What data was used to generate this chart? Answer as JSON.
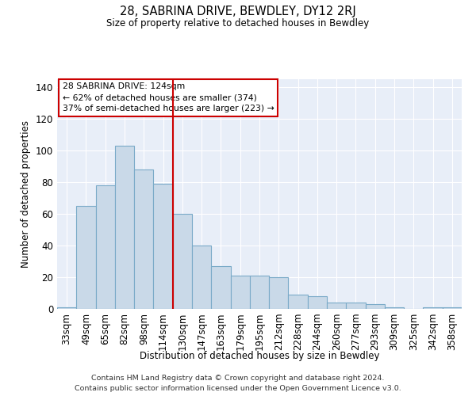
{
  "title": "28, SABRINA DRIVE, BEWDLEY, DY12 2RJ",
  "subtitle": "Size of property relative to detached houses in Bewdley",
  "xlabel": "Distribution of detached houses by size in Bewdley",
  "ylabel": "Number of detached properties",
  "categories": [
    "33sqm",
    "49sqm",
    "65sqm",
    "82sqm",
    "98sqm",
    "114sqm",
    "130sqm",
    "147sqm",
    "163sqm",
    "179sqm",
    "195sqm",
    "212sqm",
    "228sqm",
    "244sqm",
    "260sqm",
    "277sqm",
    "293sqm",
    "309sqm",
    "325sqm",
    "342sqm",
    "358sqm"
  ],
  "values": [
    1,
    65,
    78,
    103,
    88,
    79,
    60,
    40,
    27,
    21,
    21,
    20,
    9,
    8,
    4,
    4,
    3,
    1,
    0,
    1,
    1
  ],
  "bar_color": "#c9d9e8",
  "bar_edge_color": "#7aaac8",
  "background_color": "#e8eef8",
  "vline_x_index": 6,
  "vline_color": "#cc0000",
  "annotation_lines": [
    "28 SABRINA DRIVE: 124sqm",
    "← 62% of detached houses are smaller (374)",
    "37% of semi-detached houses are larger (223) →"
  ],
  "box_color": "#cc0000",
  "ylim": [
    0,
    145
  ],
  "yticks": [
    0,
    20,
    40,
    60,
    80,
    100,
    120,
    140
  ],
  "footer": "Contains HM Land Registry data © Crown copyright and database right 2024.\nContains public sector information licensed under the Open Government Licence v3.0."
}
